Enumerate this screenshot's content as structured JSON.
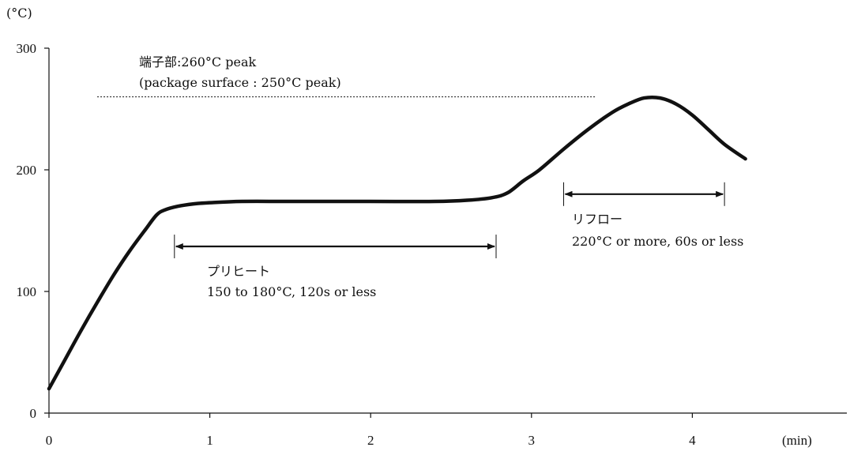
{
  "chart_data": {
    "type": "line",
    "ylabel": "(°C)",
    "xlabel": "(min)",
    "xlim": [
      0,
      5
    ],
    "ylim": [
      0,
      300
    ],
    "x_ticks": [
      0,
      1,
      2,
      3,
      4
    ],
    "y_ticks": [
      0,
      100,
      200,
      300
    ],
    "grid": false,
    "legend": "none",
    "series": [
      {
        "color": "#111111",
        "x": [
          0,
          0.1,
          0.2,
          0.3,
          0.4,
          0.5,
          0.6,
          0.67,
          0.72,
          0.8,
          0.9,
          1.0,
          1.2,
          1.5,
          2.0,
          2.4,
          2.6,
          2.75,
          2.85,
          2.95,
          3.05,
          3.2,
          3.35,
          3.5,
          3.6,
          3.7,
          3.8,
          3.9,
          4.0,
          4.1,
          4.2,
          4.33
        ],
        "y": [
          20,
          44,
          68,
          91,
          113,
          133,
          151,
          163,
          167,
          170,
          172,
          173,
          174,
          174,
          174,
          174,
          175,
          177,
          181,
          191,
          200,
          217,
          233,
          247,
          254,
          259,
          259,
          254,
          245,
          233,
          221,
          209
        ]
      }
    ],
    "reference_line": {
      "y": 260,
      "x_start": 0.3,
      "x_end": 3.4,
      "style": "dotted",
      "label_line1": "端子部:260°C peak",
      "label_line2": "(package surface : 250°C peak)"
    },
    "annotations": [
      {
        "name": "preheat",
        "x_start": 0.78,
        "x_end": 2.78,
        "y": 137,
        "label_line1": "プリヒート",
        "label_line2": "150 to 180°C, 120s or less"
      },
      {
        "name": "reflow",
        "x_start": 3.2,
        "x_end": 4.2,
        "y": 180,
        "label_line1": "リフロー",
        "label_line2": "220°C or more, 60s or less"
      }
    ]
  }
}
